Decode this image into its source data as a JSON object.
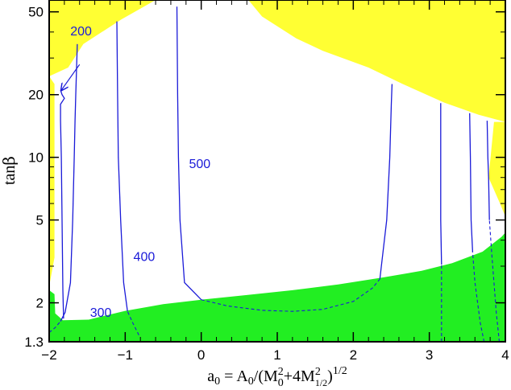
{
  "chart_data": {
    "type": "contour",
    "xlabel": "a₀ = A₀/(M₀²+4M²₁/₂)¹/²",
    "ylabel": "tanβ",
    "xlim": [
      -2,
      4
    ],
    "ylim": [
      1.3,
      57
    ],
    "y_scale": "log",
    "x_ticks": [
      -2,
      -1,
      0,
      1,
      2,
      3,
      4
    ],
    "x_tick_labels": [
      "−2",
      "−1",
      "0",
      "1",
      "2",
      "3",
      "4"
    ],
    "y_ticks": [
      1.3,
      2,
      5,
      10,
      20,
      50
    ],
    "y_tick_labels": [
      "1.3",
      "2",
      "5",
      "10",
      "20",
      "50"
    ],
    "colors": {
      "excluded_top": "#ffff33",
      "excluded_bottom": "#22ee22",
      "contour": "#1a1ad8",
      "axes": "#000000"
    },
    "regions": [
      {
        "id": "yellow-excluded",
        "color": "#ffff33",
        "polygons": [
          [
            [
              -2,
              57
            ],
            [
              -0.6,
              57
            ],
            [
              -1.05,
              46
            ],
            [
              -1.55,
              35
            ],
            [
              -1.75,
              27
            ],
            [
              -2,
              24.5
            ]
          ],
          [
            [
              0.62,
              57
            ],
            [
              4,
              57
            ],
            [
              4,
              14.8
            ],
            [
              3.65,
              16
            ],
            [
              3.2,
              18.3
            ],
            [
              2.65,
              22.5
            ],
            [
              2.2,
              27
            ],
            [
              1.6,
              32.5
            ],
            [
              1.25,
              37.3
            ],
            [
              0.8,
              47.5
            ]
          ],
          [
            [
              -2,
              24.5
            ],
            [
              -1.93,
              22.5
            ],
            [
              -1.93,
              3.3
            ],
            [
              -2,
              2.4
            ]
          ],
          [
            [
              4,
              14.8
            ],
            [
              3.85,
              14.8
            ],
            [
              3.78,
              8.0
            ],
            [
              3.93,
              6.0
            ],
            [
              4,
              5.2
            ]
          ]
        ]
      },
      {
        "id": "green-excluded",
        "color": "#22ee22",
        "polygons": [
          [
            [
              -2,
              1.3
            ],
            [
              -2,
              2.3
            ],
            [
              -1.93,
              2.2
            ],
            [
              -1.92,
              1.78
            ],
            [
              -1.82,
              1.65
            ],
            [
              -1.48,
              1.66
            ],
            [
              -1.0,
              1.83
            ],
            [
              -0.5,
              1.97
            ],
            [
              0.0,
              2.07
            ],
            [
              0.6,
              2.18
            ],
            [
              1.2,
              2.3
            ],
            [
              1.8,
              2.45
            ],
            [
              2.4,
              2.65
            ],
            [
              2.9,
              2.85
            ],
            [
              3.3,
              3.1
            ],
            [
              3.7,
              3.52
            ],
            [
              3.95,
              4.15
            ],
            [
              4,
              4.35
            ],
            [
              4,
              1.3
            ]
          ]
        ]
      }
    ],
    "contours": [
      {
        "label": "200",
        "solid": [
          [
            -1.81,
            1.68
          ],
          [
            -1.82,
            2.3
          ],
          [
            -1.83,
            5.0
          ],
          [
            -1.84,
            10.0
          ],
          [
            -1.85,
            15.0
          ],
          [
            -1.85,
            18.0
          ],
          [
            -1.8,
            19.2
          ],
          [
            -1.83,
            20.0
          ],
          [
            -1.85,
            21.0
          ]
        ],
        "dashed": []
      },
      {
        "label": "300",
        "solid": [
          [
            -1.85,
            1.63
          ],
          [
            -1.79,
            1.8
          ],
          [
            -1.72,
            2.5
          ],
          [
            -1.69,
            5.0
          ],
          [
            -1.67,
            10.0
          ],
          [
            -1.66,
            15.0
          ],
          [
            -1.65,
            20.0
          ],
          [
            -1.63,
            35.0
          ]
        ],
        "dashed": [
          [
            -2,
            1.44
          ],
          [
            -1.92,
            1.52
          ],
          [
            -1.85,
            1.63
          ]
        ]
      },
      {
        "label": "400",
        "solid": [
          [
            -0.97,
            1.82
          ],
          [
            -1.02,
            2.5
          ],
          [
            -1.06,
            5.0
          ],
          [
            -1.09,
            10.0
          ],
          [
            -1.1,
            20.0
          ],
          [
            -1.11,
            45.0
          ]
        ],
        "dashed": [
          [
            -0.82,
            1.4
          ],
          [
            -0.9,
            1.6
          ],
          [
            -0.97,
            1.82
          ]
        ]
      },
      {
        "label": "500",
        "solid": [
          [
            0.0,
            2.07
          ],
          [
            -0.22,
            2.5
          ],
          [
            -0.28,
            5.0
          ],
          [
            -0.3,
            10.0
          ],
          [
            -0.31,
            20.0
          ],
          [
            -0.32,
            53.0
          ]
        ],
        "dashed": [
          [
            0.0,
            2.07
          ],
          [
            0.35,
            1.93
          ],
          [
            0.8,
            1.84
          ],
          [
            1.2,
            1.82
          ],
          [
            1.6,
            1.86
          ],
          [
            2.0,
            2.03
          ],
          [
            2.25,
            2.35
          ],
          [
            2.35,
            2.6
          ]
        ]
      },
      {
        "label": "",
        "solid": [
          [
            2.35,
            2.6
          ],
          [
            2.44,
            5.0
          ],
          [
            2.48,
            10.0
          ],
          [
            2.5,
            18.0
          ],
          [
            2.51,
            22.5
          ]
        ],
        "dashed": []
      },
      {
        "label": "",
        "solid": [
          [
            3.16,
            3.05
          ],
          [
            3.15,
            5.0
          ],
          [
            3.15,
            10.0
          ],
          [
            3.15,
            18.2
          ]
        ],
        "dashed": [
          [
            3.16,
            1.3
          ],
          [
            3.16,
            1.8
          ],
          [
            3.16,
            3.05
          ]
        ]
      },
      {
        "label": "",
        "solid": [
          [
            3.57,
            3.5
          ],
          [
            3.55,
            5.0
          ],
          [
            3.54,
            10.0
          ],
          [
            3.53,
            16.3
          ]
        ],
        "dashed": [
          [
            3.72,
            1.3
          ],
          [
            3.67,
            1.6
          ],
          [
            3.6,
            2.5
          ],
          [
            3.57,
            3.5
          ]
        ]
      },
      {
        "label": "",
        "solid": [
          [
            3.79,
            5.0
          ],
          [
            3.78,
            8.0
          ],
          [
            3.77,
            10.0
          ],
          [
            3.76,
            15.0
          ]
        ],
        "dashed": [
          [
            3.92,
            1.3
          ],
          [
            3.88,
            1.8
          ],
          [
            3.82,
            3.5
          ],
          [
            3.79,
            5.0
          ]
        ]
      }
    ],
    "contour_labels": [
      {
        "text": "200",
        "x": -1.58,
        "y": 40
      },
      {
        "text": "300",
        "x": -1.32,
        "y": 1.78
      },
      {
        "text": "400",
        "x": -0.75,
        "y": 3.3
      },
      {
        "text": "500",
        "x": -0.02,
        "y": 9.2
      }
    ],
    "arrow_200": {
      "from": [
        -1.6,
        30
      ],
      "to": [
        -1.84,
        21
      ]
    }
  }
}
